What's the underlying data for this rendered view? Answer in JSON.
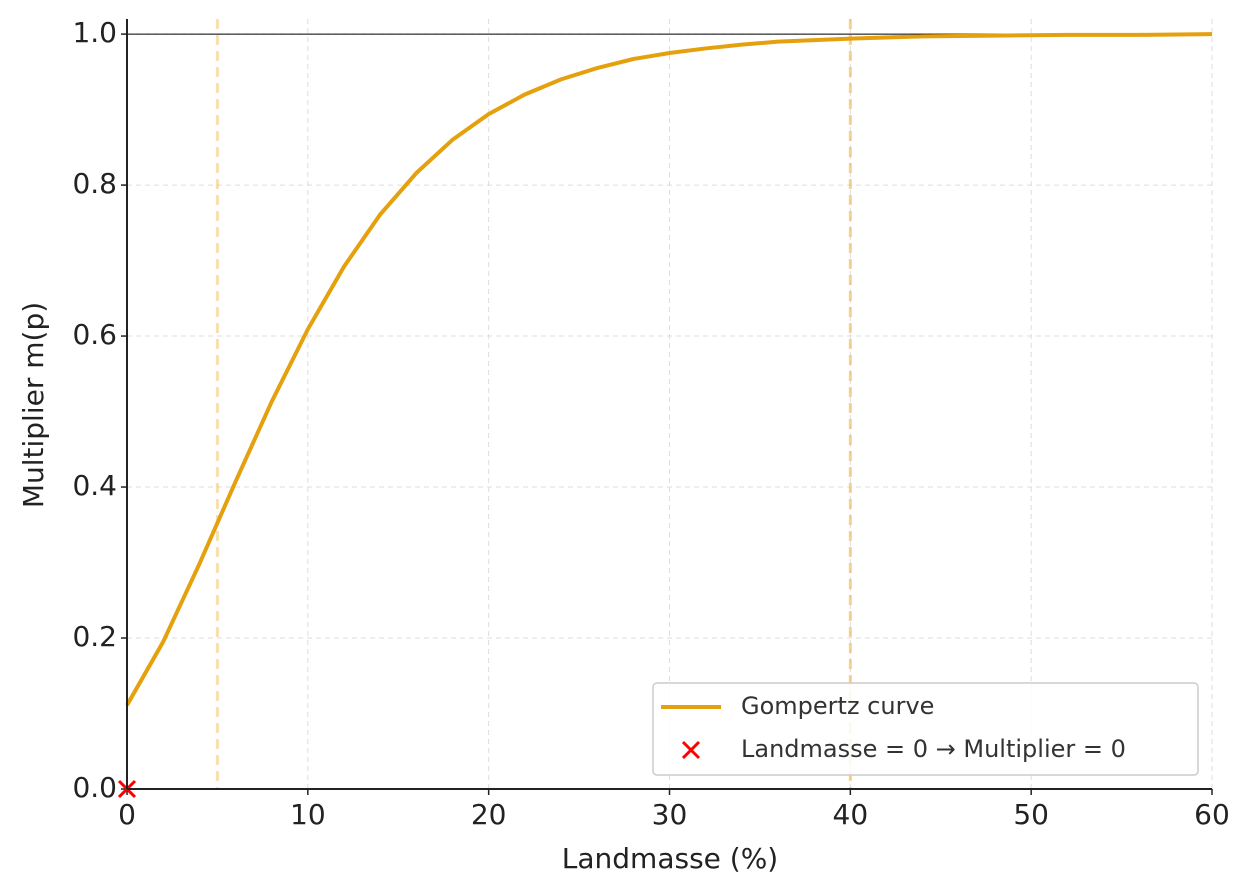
{
  "chart_data": {
    "type": "line",
    "xlabel": "Landmasse (%)",
    "ylabel": "Multiplier m(p)",
    "series": [
      {
        "name": "Gompertz curve",
        "color": "#e5a00d",
        "type": "line",
        "x": [
          0,
          2,
          4,
          6,
          8,
          10,
          12,
          14,
          16,
          18,
          20,
          22,
          24,
          26,
          28,
          30,
          32,
          34,
          36,
          38,
          40,
          44,
          48,
          52,
          56,
          60
        ],
        "values": [
          0.111,
          0.195,
          0.298,
          0.407,
          0.513,
          0.609,
          0.692,
          0.761,
          0.816,
          0.86,
          0.894,
          0.92,
          0.94,
          0.955,
          0.967,
          0.975,
          0.981,
          0.986,
          0.99,
          0.992,
          0.994,
          0.997,
          0.998,
          0.999,
          0.999,
          1.0
        ]
      },
      {
        "name": "Landmasse = 0 → Multiplier = 0",
        "color": "#ff0000",
        "type": "scatter",
        "x": [
          0
        ],
        "values": [
          0
        ]
      }
    ],
    "vlines": [
      5,
      40
    ],
    "vline_color": "#f0c060",
    "hline": 1,
    "hline_color": "#000000",
    "xlim": [
      0,
      60
    ],
    "xticks": [
      0,
      10,
      20,
      30,
      40,
      50,
      60
    ],
    "ylim": [
      0,
      1.02
    ],
    "yticks": [
      {
        "value": 0,
        "label": "0.0"
      },
      0.2,
      0.4,
      0.6,
      0.8,
      {
        "value": 1,
        "label": "1.0"
      }
    ],
    "grid": true,
    "legend": "lower right"
  }
}
